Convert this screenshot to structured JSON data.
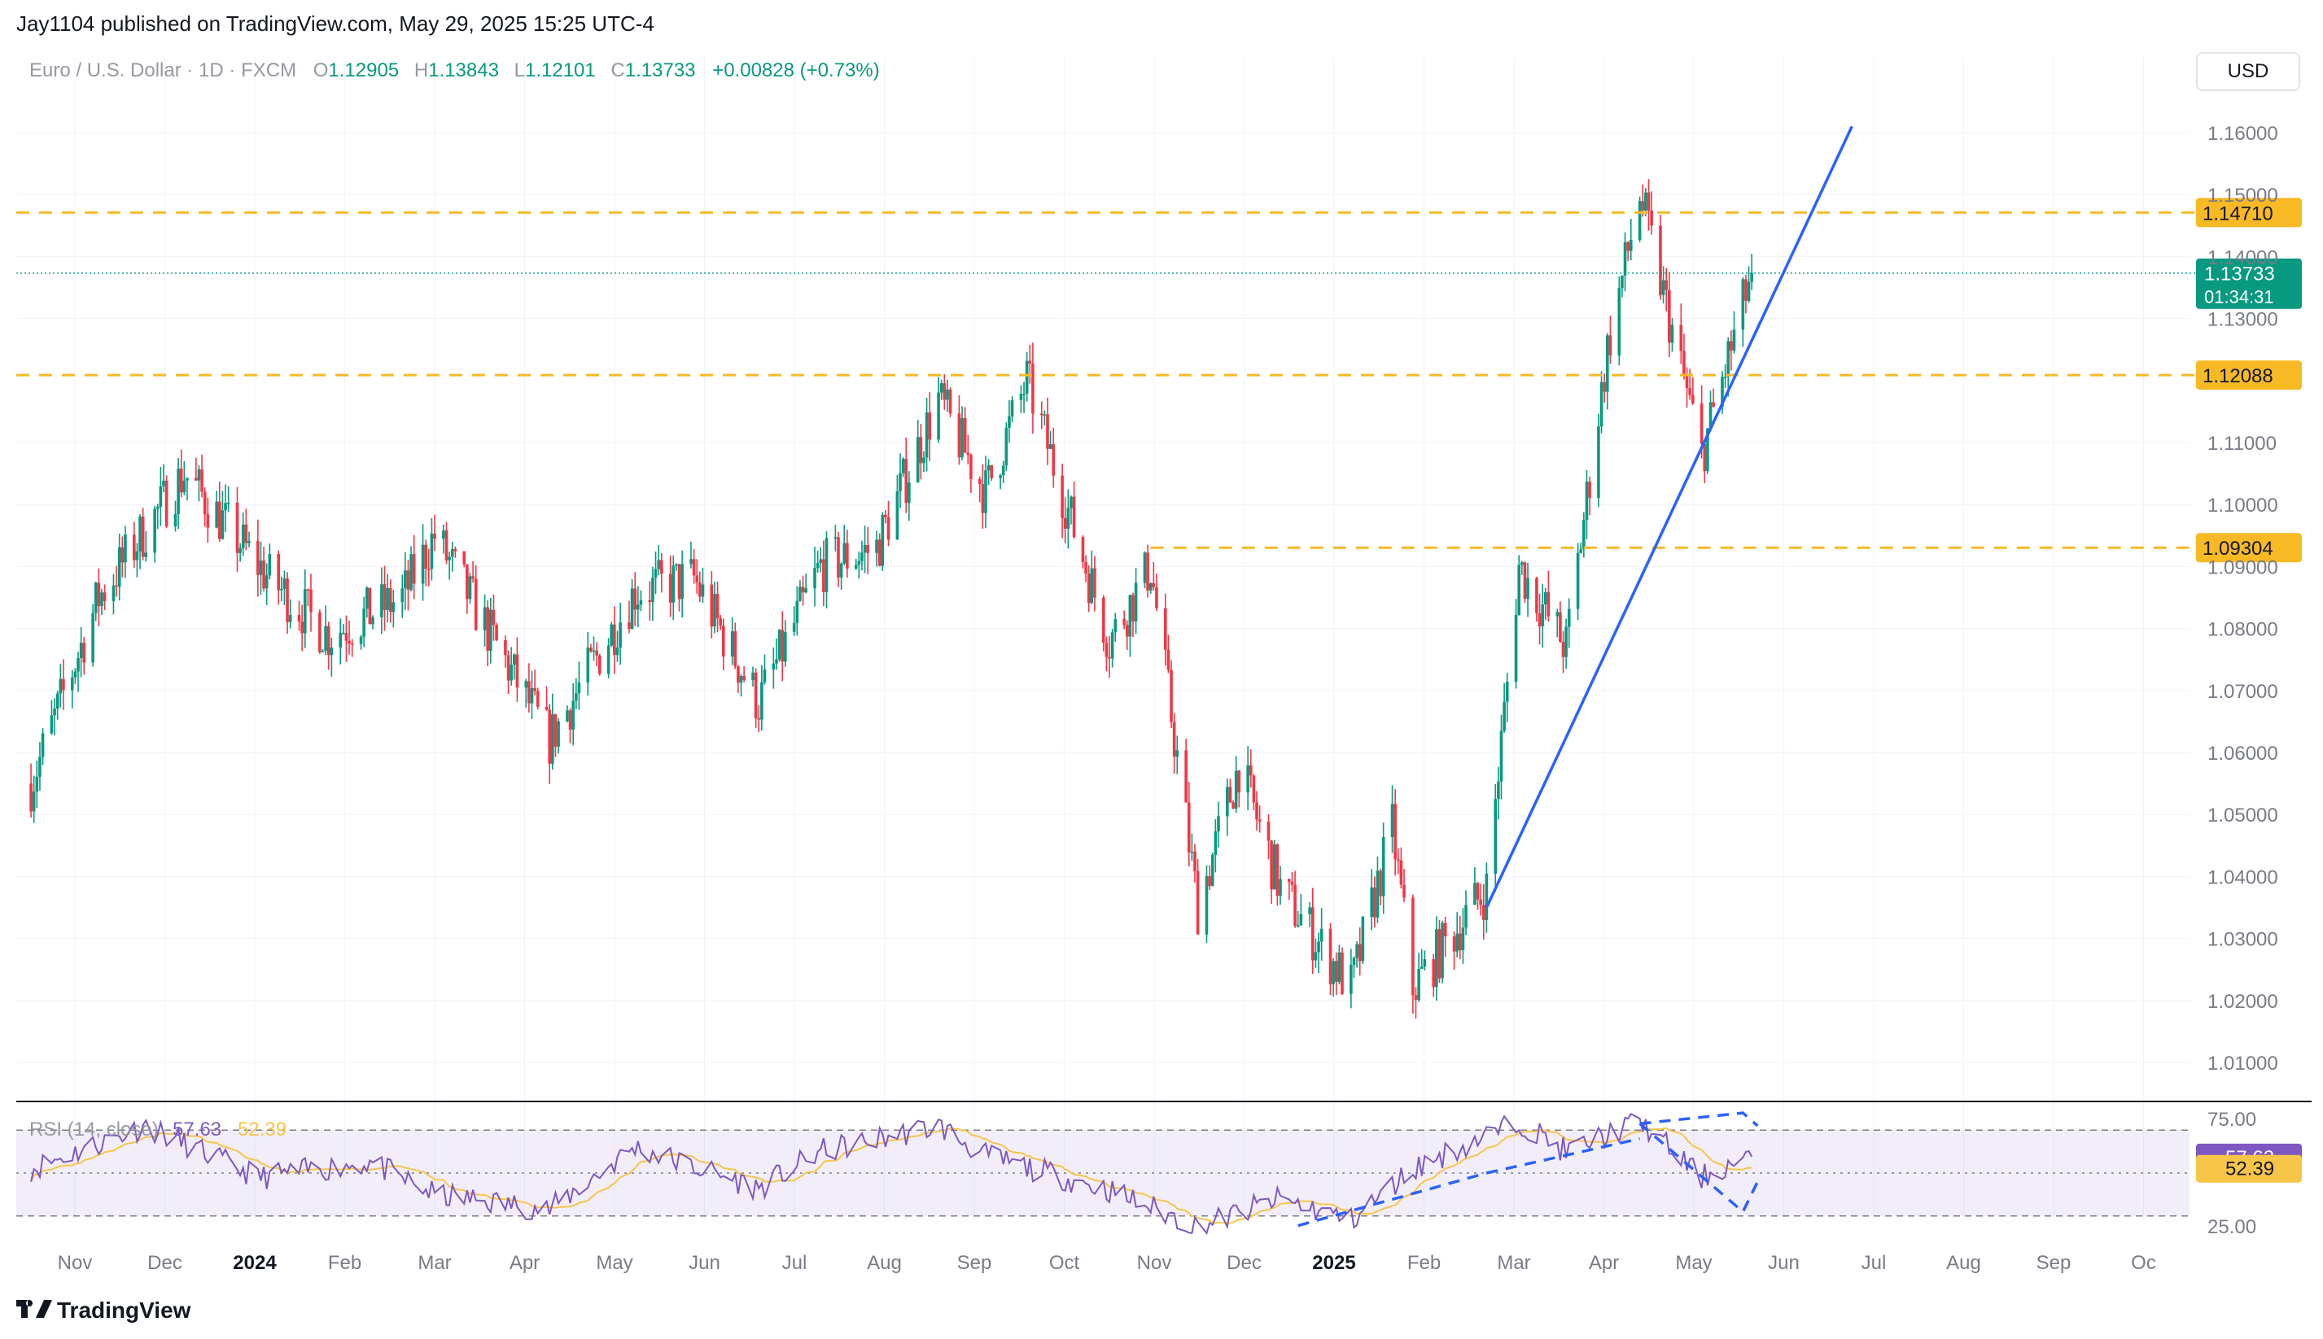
{
  "header": {
    "publisher": "Jay1104 published on TradingView.com, May 29, 2025 15:25 UTC-4",
    "symbol": "Euro / U.S. Dollar · 1D · FXCM",
    "open_label": "O",
    "open_value": "1.12905",
    "high_label": "H",
    "high_value": "1.13843",
    "low_label": "L",
    "low_value": "1.12101",
    "close_label": "C",
    "close_value": "1.13733",
    "change": "+0.00828 (+0.73%)"
  },
  "currency_button": "USD",
  "footer": {
    "brand": "TradingView"
  },
  "colors": {
    "up": "#089981",
    "down": "#f23645",
    "level": "#f7b924",
    "trendline": "#2962ff",
    "rsi": "#7e57c2",
    "rsi_ma": "#f7c548",
    "grid": "#f0f3fa",
    "axis_text": "#787b86",
    "last_price": "#089981"
  },
  "price_axis": {
    "ticks": [
      "1.16000",
      "1.15000",
      "1.14000",
      "1.13000",
      "1.11000",
      "1.10000",
      "1.09000",
      "1.08000",
      "1.07000",
      "1.06000",
      "1.05000",
      "1.04000",
      "1.03000",
      "1.02000",
      "1.01000"
    ],
    "tick_values": [
      1.16,
      1.15,
      1.14,
      1.13,
      1.11,
      1.1,
      1.09,
      1.08,
      1.07,
      1.06,
      1.05,
      1.04,
      1.03,
      1.02,
      1.01
    ]
  },
  "levels": [
    {
      "label": "1.14710",
      "value": 1.1471
    },
    {
      "label": "1.12088",
      "value": 1.12088
    },
    {
      "label": "1.09304",
      "value": 1.09304
    }
  ],
  "last_price": {
    "label": "1.13733",
    "countdown": "01:34:31",
    "value": 1.13733
  },
  "rsi": {
    "title": "RSI (14, close)",
    "value_label": "57.63",
    "ma_label": "52.39",
    "value": 57.63,
    "ma": 52.39,
    "axis_ticks": [
      "75.00",
      "25.00"
    ],
    "upper_band": 70,
    "middle_band": 50,
    "lower_band": 30
  },
  "time_axis": {
    "labels": [
      "Nov",
      "Dec",
      "2024",
      "Feb",
      "Mar",
      "Apr",
      "May",
      "Jun",
      "Jul",
      "Aug",
      "Sep",
      "Oct",
      "Nov",
      "Dec",
      "2025",
      "Feb",
      "Mar",
      "Apr",
      "May",
      "Jun",
      "Jul",
      "Aug",
      "Sep",
      "Oc"
    ],
    "bold": [
      "2024",
      "2025"
    ]
  },
  "chart_data": {
    "type": "candlestick",
    "symbol": "EUR/USD",
    "interval": "1D",
    "currency": "USD",
    "ylim": [
      1.005,
      1.165
    ],
    "grid": true,
    "x": [
      "2023-10-23",
      "2023-11-15",
      "2023-12-14",
      "2024-01-12",
      "2024-02-01",
      "2024-02-26",
      "2024-03-08",
      "2024-04-16",
      "2024-05-15",
      "2024-06-04",
      "2024-06-26",
      "2024-07-17",
      "2024-08-05",
      "2024-08-26",
      "2024-09-11",
      "2024-09-25",
      "2024-10-23",
      "2024-11-06",
      "2024-11-22",
      "2024-12-06",
      "2024-12-20",
      "2025-01-13",
      "2025-01-27",
      "2025-02-03",
      "2025-02-28",
      "2025-03-11",
      "2025-03-27",
      "2025-04-10",
      "2025-04-21",
      "2025-05-12",
      "2025-05-29"
    ],
    "y": [
      1.055,
      1.085,
      1.105,
      1.088,
      1.079,
      1.085,
      1.095,
      1.062,
      1.086,
      1.088,
      1.068,
      1.09,
      1.093,
      1.117,
      1.102,
      1.12,
      1.078,
      1.09,
      1.035,
      1.058,
      1.038,
      1.022,
      1.048,
      1.022,
      1.038,
      1.09,
      1.077,
      1.125,
      1.15,
      1.108,
      1.13733
    ],
    "trendline": {
      "from": {
        "date": "2025-02-28",
        "price": 1.035
      },
      "to": {
        "date": "2025-07-02",
        "price": 1.161
      }
    },
    "rsi": {
      "x": [
        "2023-10-23",
        "2023-12-01",
        "2024-01-08",
        "2024-02-15",
        "2024-03-08",
        "2024-04-16",
        "2024-05-15",
        "2024-06-26",
        "2024-07-17",
        "2024-08-26",
        "2024-09-11",
        "2024-10-23",
        "2024-11-22",
        "2024-12-20",
        "2025-01-13",
        "2025-02-03",
        "2025-03-11",
        "2025-03-27",
        "2025-04-21",
        "2025-05-12",
        "2025-05-29"
      ],
      "y": [
        52,
        72,
        48,
        55,
        40,
        33,
        62,
        43,
        60,
        72,
        58,
        42,
        25,
        38,
        28,
        52,
        74,
        60,
        74,
        48,
        57.63
      ]
    }
  }
}
